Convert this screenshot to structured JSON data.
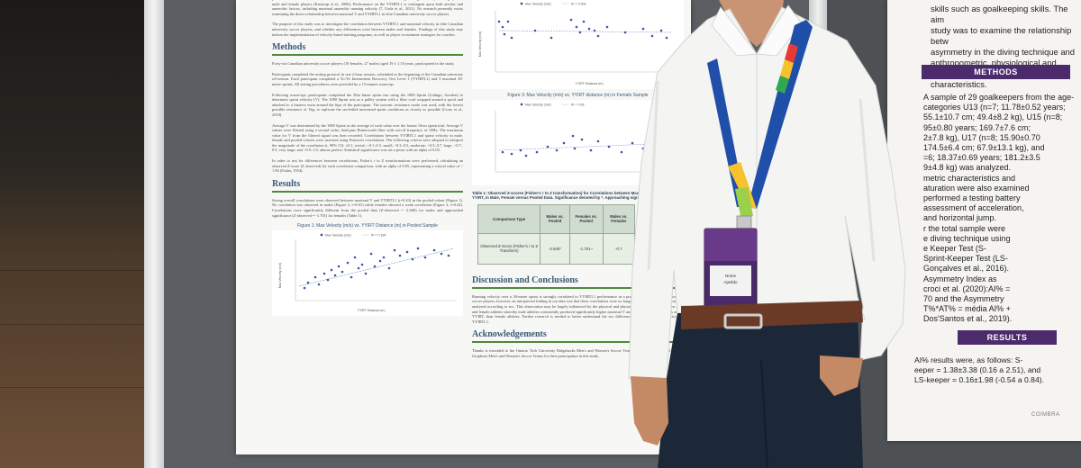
{
  "poster": {
    "intro_tail": "performance in soccer, with robust correlations between YYIRTL1 scores and in-game high-intensity running by both male and female players (Krustrup et al., 2006). Performance on the YYIRTL1 is contingent upon both aerobic and anaerobic factors, including maximal anaerobic running velocity (7, Ueda et al., 2011). No research presently exists examining the direct relationship between maximal V and YYIRTL1 in elite Canadian university soccer players.",
    "purpose": "The purpose of this study was to investigate the correlation between YYIRTL1 and maximal velocity in elite Canadian university soccer players, and whether any differences exist between males and females. Findings of this study may inform the implementation of velocity-based training programs, as well as player recruitment strategies for coaches.",
    "methods_heading": "Methods",
    "methods_p1": "Forty-six Canadian university soccer players (19 females, 27 males) aged 19 ± 1.10 years, participated in the study.",
    "methods_p2": "Participants completed the testing protocol in one 2-hour session, scheduled at the beginning of the Canadian university off-season. Each participant completed a Yo-Yo Intermittent Recovery Test Level 1 (YYIRTL1) and 3 maximal 30-metre sprints. All testing procedures were provided by a 15-minute warm-up.",
    "methods_p3": "Following warm-ups, participants completed the 30m linear sprint test using the 1080 Sprint (Lidingo, Sweden) to determine sprint velocity (V). The 1080 Sprint acts as a pulley system with a fiber cord wrapped around a spool and attached to a harness worn around the hips of the participant. The isotonic resistance mode was used, with the lowest possible resistance of 1kg, to replicate the un-fettled unresisted sprint conditions as closely as possible (Cross et al., 2018).",
    "methods_p4": "Average V was determined by the 1080 Sprint as the average of each value over the fastest 10cm sprint trial. Average V values were filtered using a second order, dual-pass Butterworth filter with cut-off frequency of 10Hz. The maximum value for V from the filtered signal was then recorded. Correlations between YYIRTL1 and sprint velocity in male, female and pooled cohorts were assessed using Pearson's correlations. The following criteria were adopted to interpret the magnitude of the correlation (r, 90% CI): ≤0.1, trivial; >0.1–0.3, small; >0.3–0.5, moderate; >0.5–0.7, large; >0.7–0.9, very large; and >0.9–1.0, almost perfect. Statistical significance was set a priori with an alpha of 0.05.",
    "methods_p5": "In order to test for differences between correlations, Fisher's r to Z transformations were performed, calculating an observed Z-score (Z observed) for each correlation comparison, with an alpha of 0.05, representing a critical value of > 1.96 (Fisher, 1954).",
    "results_heading": "Results",
    "results_p1": "Strong overall correlations were observed between maximal V and YYIRTL1 (r=0.43) in the pooled cohort (Figure 1). No correlation was observed in males (Figure 2; r=0.01) while females showed a weak correlation (Figure 3; r=0.24). Correlations were significantly different from the pooled data (Z-observed = -2.840) for males and approached significance (Z-observed = -1.701) for females (Table 1).",
    "fig1_title": "Figure 1: Max Velocity (m/s) vs. YYIRT Distance (m) in Pooled Sample",
    "fig2_title": "Figure 2: Max Velocity (m/s) vs. YYIRT distance (m) in Male Sample",
    "fig3_title": "Figure 3: Max Velocity (m/s) vs. YYIRT distance (m) in Female Sample",
    "legend_series": "Max Velocity (m/s)",
    "axis_x": "YYIRT Distance (m)",
    "axis_y": "Max Velocity (m/s)",
    "r2_fig1": "R² = 0.184",
    "r2_fig2": "R² = 0.000",
    "r2_fig3": "R² = 0.06",
    "table_caption": "Table 1: Observed Z-scores (Fisher's r to Z transformation) for Correlations between Maximal Velocity, and YYIRT, in Male, Female versus Pooled Data. Significance denoted by *. Approaching significance denoted by ~",
    "table_headers": [
      "Comparison Type",
      "Males vs. Pooled",
      "Females vs. Pooled",
      "Males vs. Females"
    ],
    "table_row_label": "Observed Z-Score (Fisher's r to Z Transform)",
    "table_values": [
      "-2.840*",
      "-1.701~",
      "-0.7"
    ],
    "discussion_heading": "Discussion and Conclusions",
    "discussion_p": "Running velocity over a 30-metre sprint is strongly correlated to YYIRTL1 performance in a pooled sample of Canadian college soccer players, however, an unexpected finding in our data was that these correlations were no longer present when the data was sub-analyzed according to sex. This observation may be largely influenced by the physical and physiological differences between male and female athletes whereby male athletes consistently produced significantly higher maximal V and covered greater distances on the YYIRT, than female athletes. Further research is needed to better understand the sex differences between running velocity and YYIRTL1.",
    "ack_heading": "Acknowledgements",
    "ack_p": "Thanks is extended to the Ontario Tech University Ridgebacks Men's and Women's Soccer Teams, and the University of Guelph Gryphons Men's and Women's Soccer Teams for their participation in this study."
  },
  "poster2": {
    "top_lines": [
      "skills such as goalkeeping skills. The aim",
      "study was to examine the relationship betw",
      "asymmetry in the diving technique and",
      "anthropometric, physiological and maturati",
      "characteristics."
    ],
    "methods_band": "METHODS",
    "methods_lines": [
      "A sample of 29 goalkeepers from the age-",
      "categories U13 (n=7; 11.78±0.52 years;",
      "55.1±10.7 cm; 49.4±8.2 kg), U15 (n=8;",
      "95±0.80 years; 169.7±7.6 cm;",
      "2±7.8 kg), U17 (n=8; 15.90±0.70",
      "174.5±6.4 cm; 67.9±13.1 kg), and",
      "=6; 18.37±0.69 years; 181.2±3.5",
      "9±4.8 kg) was analyzed.",
      "metric characteristics and",
      "aturation were also examined",
      "performed a testing battery",
      "assessment of acceleration,",
      "and horizontal jump.",
      "r the total sample were",
      "e diving technique using",
      "e Keeper Test (S-",
      "Sprint-Keeper Test (LS-",
      "Gonçalves et al., 2016).",
      "Asymmetry Index as",
      "croci et al. (2020):AI% =",
      "70 and the Asymmetry",
      "T%*AT% = média AI% +",
      "Dos'Santos et al., 2019)."
    ],
    "results_band": "RESULTS",
    "results_lines": [
      "AI% results were, as follows: S-",
      "eeper = 1.38±3.38 (0.16 a 2.51), and",
      "LS-keeper = 0.16±1.98 (-0.54 a 0.84)."
    ],
    "footer_logo_text": "COIMBRA"
  },
  "badge": {
    "name_line1": "Nome",
    "name_line2": "Apelido"
  }
}
